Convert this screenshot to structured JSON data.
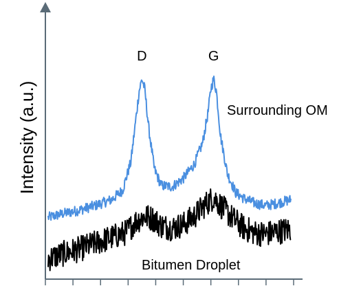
{
  "colors": {
    "axis": "#5a6b77",
    "om_series": "#4a8fe0",
    "bitumen_series": "#000000"
  },
  "chart_data": {
    "type": "line",
    "title": "",
    "xlabel": "",
    "ylabel": "Intensity (a.u.)",
    "xlim": [
      0,
      9
    ],
    "ylim": [
      0,
      10
    ],
    "x_tick_count": 10,
    "x_tick_labels": [],
    "grid": false,
    "legend": "none",
    "peak_labels": [
      {
        "text": "D",
        "x": 3.5
      },
      {
        "text": "G",
        "x": 6.1
      }
    ],
    "series": [
      {
        "name": "Surrounding OM",
        "noise": 0.22,
        "x": [
          0.1,
          0.6,
          1.2,
          1.8,
          2.4,
          2.8,
          3.1,
          3.25,
          3.4,
          3.5,
          3.6,
          3.75,
          3.95,
          4.2,
          4.6,
          5.0,
          5.4,
          5.7,
          5.9,
          6.0,
          6.1,
          6.2,
          6.35,
          6.6,
          6.9,
          7.2,
          7.6,
          8.0,
          8.4,
          8.9
        ],
        "values": [
          2.55,
          2.7,
          2.85,
          3.05,
          3.3,
          3.7,
          4.9,
          6.4,
          7.9,
          8.4,
          8.0,
          6.3,
          4.6,
          3.9,
          3.85,
          4.2,
          4.8,
          5.7,
          7.0,
          8.0,
          8.4,
          7.9,
          6.0,
          4.4,
          3.6,
          3.35,
          3.15,
          3.05,
          3.15,
          3.3
        ]
      },
      {
        "name": "Bitumen Droplet",
        "noise": 0.55,
        "x": [
          0.1,
          0.6,
          1.2,
          1.8,
          2.4,
          2.9,
          3.3,
          3.6,
          3.9,
          4.2,
          4.6,
          5.0,
          5.4,
          5.8,
          6.1,
          6.4,
          6.8,
          7.2,
          7.6,
          8.0,
          8.4,
          8.9
        ],
        "values": [
          0.8,
          1.0,
          1.2,
          1.45,
          1.7,
          1.9,
          2.4,
          2.6,
          2.5,
          2.2,
          2.1,
          2.25,
          2.6,
          3.1,
          3.4,
          3.0,
          2.5,
          2.1,
          1.9,
          1.85,
          1.95,
          2.05
        ]
      }
    ]
  }
}
